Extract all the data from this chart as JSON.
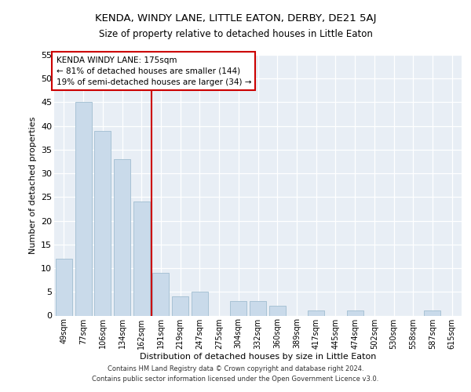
{
  "title": "KENDA, WINDY LANE, LITTLE EATON, DERBY, DE21 5AJ",
  "subtitle": "Size of property relative to detached houses in Little Eaton",
  "xlabel": "Distribution of detached houses by size in Little Eaton",
  "ylabel": "Number of detached properties",
  "categories": [
    "49sqm",
    "77sqm",
    "106sqm",
    "134sqm",
    "162sqm",
    "191sqm",
    "219sqm",
    "247sqm",
    "275sqm",
    "304sqm",
    "332sqm",
    "360sqm",
    "389sqm",
    "417sqm",
    "445sqm",
    "474sqm",
    "502sqm",
    "530sqm",
    "558sqm",
    "587sqm",
    "615sqm"
  ],
  "values": [
    12,
    45,
    39,
    33,
    24,
    9,
    4,
    5,
    0,
    3,
    3,
    2,
    0,
    1,
    0,
    1,
    0,
    0,
    0,
    1,
    0
  ],
  "bar_color": "#c9daea",
  "bar_edge_color": "#a0bdd0",
  "bar_edge_width": 0.6,
  "vline_x": 4.5,
  "vline_color": "#cc0000",
  "vline_linewidth": 1.5,
  "annotation_text": "KENDA WINDY LANE: 175sqm\n← 81% of detached houses are smaller (144)\n19% of semi-detached houses are larger (34) →",
  "annotation_box_color": "#ffffff",
  "annotation_box_edge_color": "#cc0000",
  "ylim": [
    0,
    55
  ],
  "background_color": "#e8eef5",
  "grid_color": "#ffffff",
  "footer_line1": "Contains HM Land Registry data © Crown copyright and database right 2024.",
  "footer_line2": "Contains public sector information licensed under the Open Government Licence v3.0."
}
